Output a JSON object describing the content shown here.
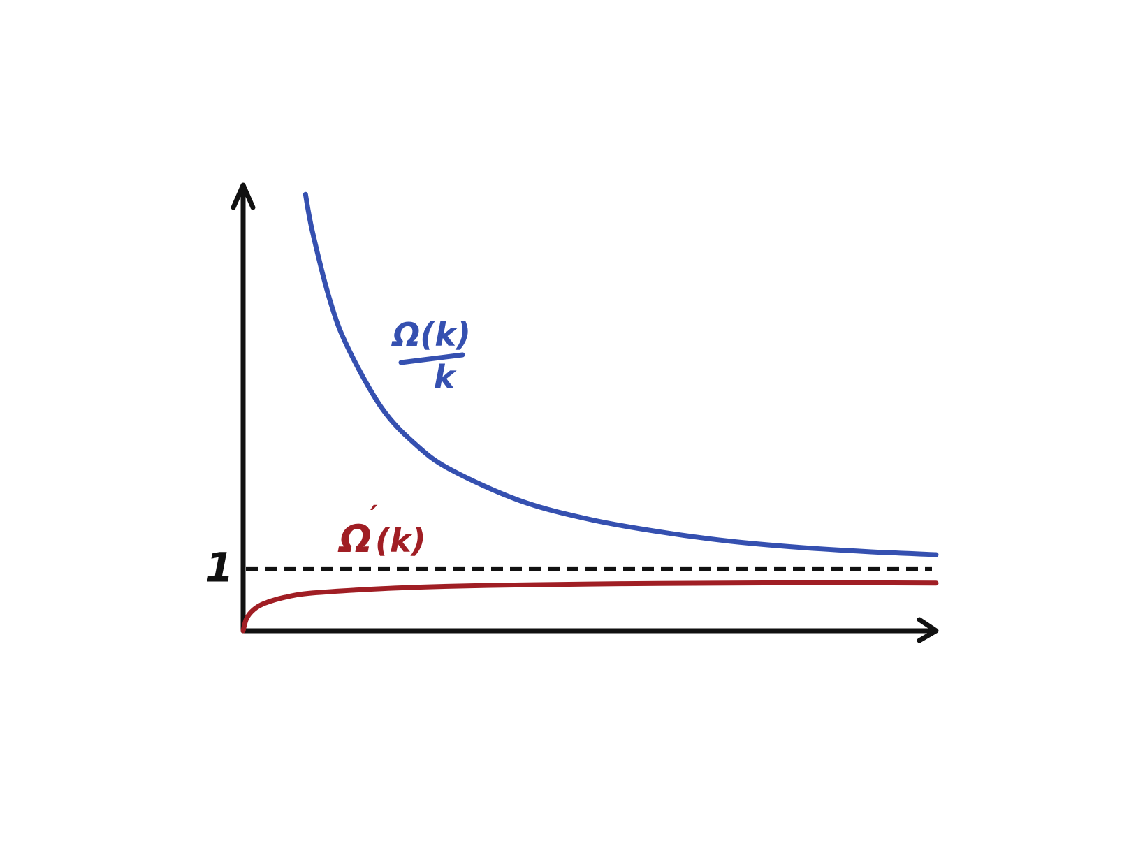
{
  "chart_data": {
    "type": "line",
    "title": "",
    "xlabel": "",
    "ylabel": "",
    "yticks": [
      {
        "value": 1,
        "label": "1"
      }
    ],
    "xlim": [
      0,
      10
    ],
    "ylim": [
      0,
      7.2
    ],
    "reference_line": {
      "y": 1,
      "style": "dashed",
      "color": "#111111"
    },
    "series": [
      {
        "name": "Ω(k)/k",
        "label_numerator": "Ω(k)",
        "label_denominator": "k",
        "color": "#3550b0",
        "x": [
          0.9,
          1.0,
          1.25,
          1.5,
          2.0,
          2.5,
          3.0,
          4.0,
          5.0,
          6.0,
          7.0,
          8.0,
          9.0,
          10.0
        ],
        "y": [
          7.05,
          6.45,
          5.35,
          4.6,
          3.6,
          3.0,
          2.6,
          2.1,
          1.8,
          1.6,
          1.45,
          1.35,
          1.28,
          1.23
        ]
      },
      {
        "name": "Ω′(k)",
        "label_main": "Ω",
        "label_prime": "′",
        "label_arg": "(k)",
        "color": "#a01e24",
        "x": [
          0.0,
          0.05,
          0.15,
          0.3,
          0.6,
          1.0,
          2.0,
          3.0,
          4.0,
          5.0,
          6.0,
          7.0,
          8.0,
          9.0,
          10.0
        ],
        "y": [
          0.0,
          0.2,
          0.34,
          0.44,
          0.54,
          0.61,
          0.68,
          0.72,
          0.74,
          0.755,
          0.765,
          0.77,
          0.775,
          0.775,
          0.77
        ]
      }
    ],
    "axis_color": "#111111",
    "grid": false,
    "legend": "none"
  }
}
